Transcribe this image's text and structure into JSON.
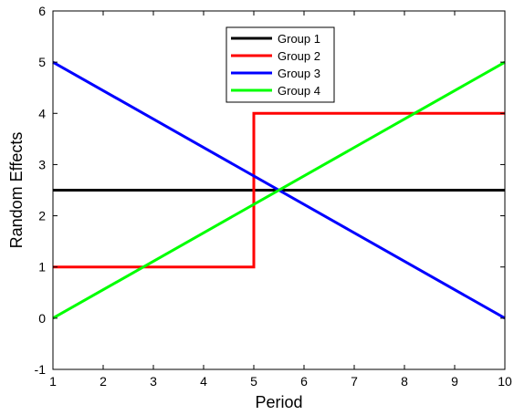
{
  "chart_data": {
    "type": "line",
    "title": "",
    "xlabel": "Period",
    "ylabel": "Random Effects",
    "xlim": [
      1,
      10
    ],
    "ylim": [
      -1,
      6
    ],
    "xticks": [
      1,
      2,
      3,
      4,
      5,
      6,
      7,
      8,
      9,
      10
    ],
    "yticks": [
      -1,
      0,
      1,
      2,
      3,
      4,
      5,
      6
    ],
    "grid": false,
    "legend_position": "top-center",
    "series": [
      {
        "name": "Group 1",
        "color": "#000000",
        "x": [
          1,
          10
        ],
        "y": [
          2.5,
          2.5
        ]
      },
      {
        "name": "Group 2",
        "color": "#ff0000",
        "x": [
          1,
          5,
          5,
          10
        ],
        "y": [
          1,
          1,
          4,
          4
        ]
      },
      {
        "name": "Group 3",
        "color": "#0000ff",
        "x": [
          1,
          10
        ],
        "y": [
          5,
          0
        ]
      },
      {
        "name": "Group 4",
        "color": "#00ff00",
        "x": [
          1,
          10
        ],
        "y": [
          0,
          5
        ]
      }
    ]
  }
}
